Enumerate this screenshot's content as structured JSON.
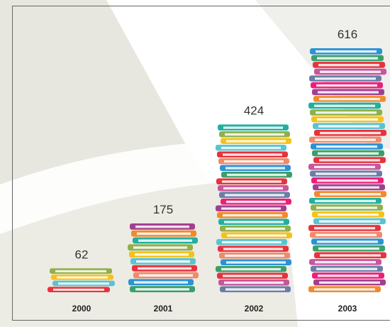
{
  "chart_data": {
    "type": "pictograph",
    "categories": [
      "2000",
      "2001",
      "2002",
      "2003"
    ],
    "values": [
      62,
      175,
      424,
      616
    ],
    "colors": [
      "#e8323c",
      "#f28a2c",
      "#e8323c",
      "#5bc3d0",
      "#a23f8e",
      "#3aa06a",
      "#f5c21b",
      "#ec1f7a",
      "#2a93d5",
      "#8fb04a",
      "#6a7ea6",
      "#f08a6a",
      "#20b0a0",
      "#c7569a"
    ]
  }
}
